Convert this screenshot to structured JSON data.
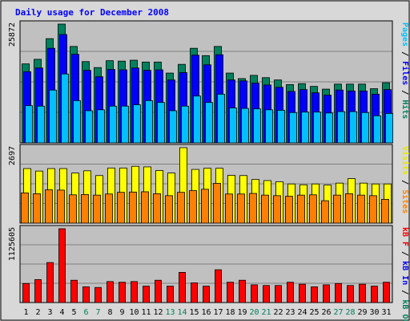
{
  "chart_data": [
    {
      "type": "bar",
      "title": "Daily usage for December 2008",
      "ylabel_parts": [
        {
          "text": "Pages",
          "color": "#00c0ff"
        },
        {
          "text": " / ",
          "color": "#000000"
        },
        {
          "text": "Files",
          "color": "#0000ff"
        },
        {
          "text": " / ",
          "color": "#000000"
        },
        {
          "text": "Hits",
          "color": "#00805c"
        }
      ],
      "ymax_label": "25872",
      "ylim": [
        0,
        25872
      ],
      "categories": [
        "1",
        "2",
        "3",
        "4",
        "5",
        "6",
        "7",
        "8",
        "9",
        "10",
        "11",
        "12",
        "13",
        "14",
        "15",
        "16",
        "17",
        "18",
        "19",
        "20",
        "21",
        "22",
        "23",
        "24",
        "25",
        "26",
        "27",
        "28",
        "29",
        "30",
        "31"
      ],
      "weekend_days": [
        "6",
        "7",
        "13",
        "14",
        "20",
        "21",
        "27",
        "28"
      ],
      "series": [
        {
          "name": "Hits",
          "color": "#00805c",
          "values": [
            17200,
            18200,
            22700,
            25872,
            21000,
            17700,
            16400,
            17900,
            17800,
            18000,
            17600,
            17600,
            15200,
            17100,
            20600,
            19000,
            21000,
            15200,
            14000,
            14700,
            14200,
            13700,
            12700,
            12900,
            12300,
            11700,
            12800,
            12800,
            12800,
            11800,
            13100
          ]
        },
        {
          "name": "Files",
          "color": "#0000ff",
          "values": [
            15500,
            16300,
            20600,
            23600,
            19300,
            15800,
            14400,
            16000,
            15900,
            16300,
            15800,
            15900,
            13700,
            15300,
            19100,
            17000,
            19200,
            13700,
            13500,
            13000,
            12600,
            12100,
            11200,
            11600,
            10900,
            10400,
            11500,
            11300,
            11300,
            10600,
            11600
          ]
        },
        {
          "name": "Pages",
          "color": "#00c0ff",
          "values": [
            8100,
            8000,
            11500,
            15000,
            9200,
            7000,
            7200,
            8000,
            8000,
            8300,
            9200,
            8800,
            7000,
            8000,
            10200,
            8800,
            10600,
            7600,
            7500,
            7400,
            7200,
            7100,
            6600,
            6700,
            6700,
            6500,
            6800,
            6800,
            6600,
            5900,
            6400
          ]
        }
      ]
    },
    {
      "type": "bar",
      "ylabel_parts": [
        {
          "text": "Visits",
          "color": "#e8e800"
        },
        {
          "text": " / ",
          "color": "#000000"
        },
        {
          "text": "Sites",
          "color": "#ff8000"
        }
      ],
      "ymax_label": "2697",
      "ylim": [
        0,
        2697
      ],
      "series": [
        {
          "name": "Visits",
          "color": "#ffff00",
          "values": [
            1950,
            1860,
            1950,
            1950,
            1790,
            1870,
            1700,
            1970,
            1970,
            2030,
            2010,
            1880,
            1790,
            2697,
            1920,
            1960,
            1960,
            1710,
            1700,
            1560,
            1520,
            1480,
            1400,
            1370,
            1400,
            1360,
            1430,
            1590,
            1430,
            1400,
            1400
          ]
        },
        {
          "name": "Sites",
          "color": "#ff8000",
          "values": [
            1080,
            1050,
            1190,
            1180,
            1010,
            1020,
            1000,
            1040,
            1100,
            1110,
            1120,
            1050,
            980,
            1100,
            1160,
            1210,
            1420,
            1040,
            1040,
            1060,
            1000,
            980,
            960,
            1000,
            1010,
            800,
            1000,
            1050,
            1000,
            980,
            850
          ]
        }
      ]
    },
    {
      "type": "bar",
      "ylabel_parts": [
        {
          "text": "kB F",
          "color": "#ff0000"
        },
        {
          "text": " / ",
          "color": "#000000"
        },
        {
          "text": "kB In",
          "color": "#0000ff"
        },
        {
          "text": " / ",
          "color": "#000000"
        },
        {
          "text": "kB Out",
          "color": "#00805c"
        }
      ],
      "ymax_label": "1125605",
      "ylim": [
        0,
        1125605
      ],
      "series": [
        {
          "name": "kB F",
          "color": "#ff0000",
          "values": [
            290000,
            350000,
            610000,
            1125605,
            340000,
            240000,
            230000,
            320000,
            310000,
            320000,
            250000,
            340000,
            250000,
            460000,
            300000,
            250000,
            500000,
            310000,
            340000,
            270000,
            260000,
            260000,
            310000,
            280000,
            240000,
            270000,
            290000,
            260000,
            280000,
            250000,
            310000
          ]
        }
      ]
    }
  ]
}
